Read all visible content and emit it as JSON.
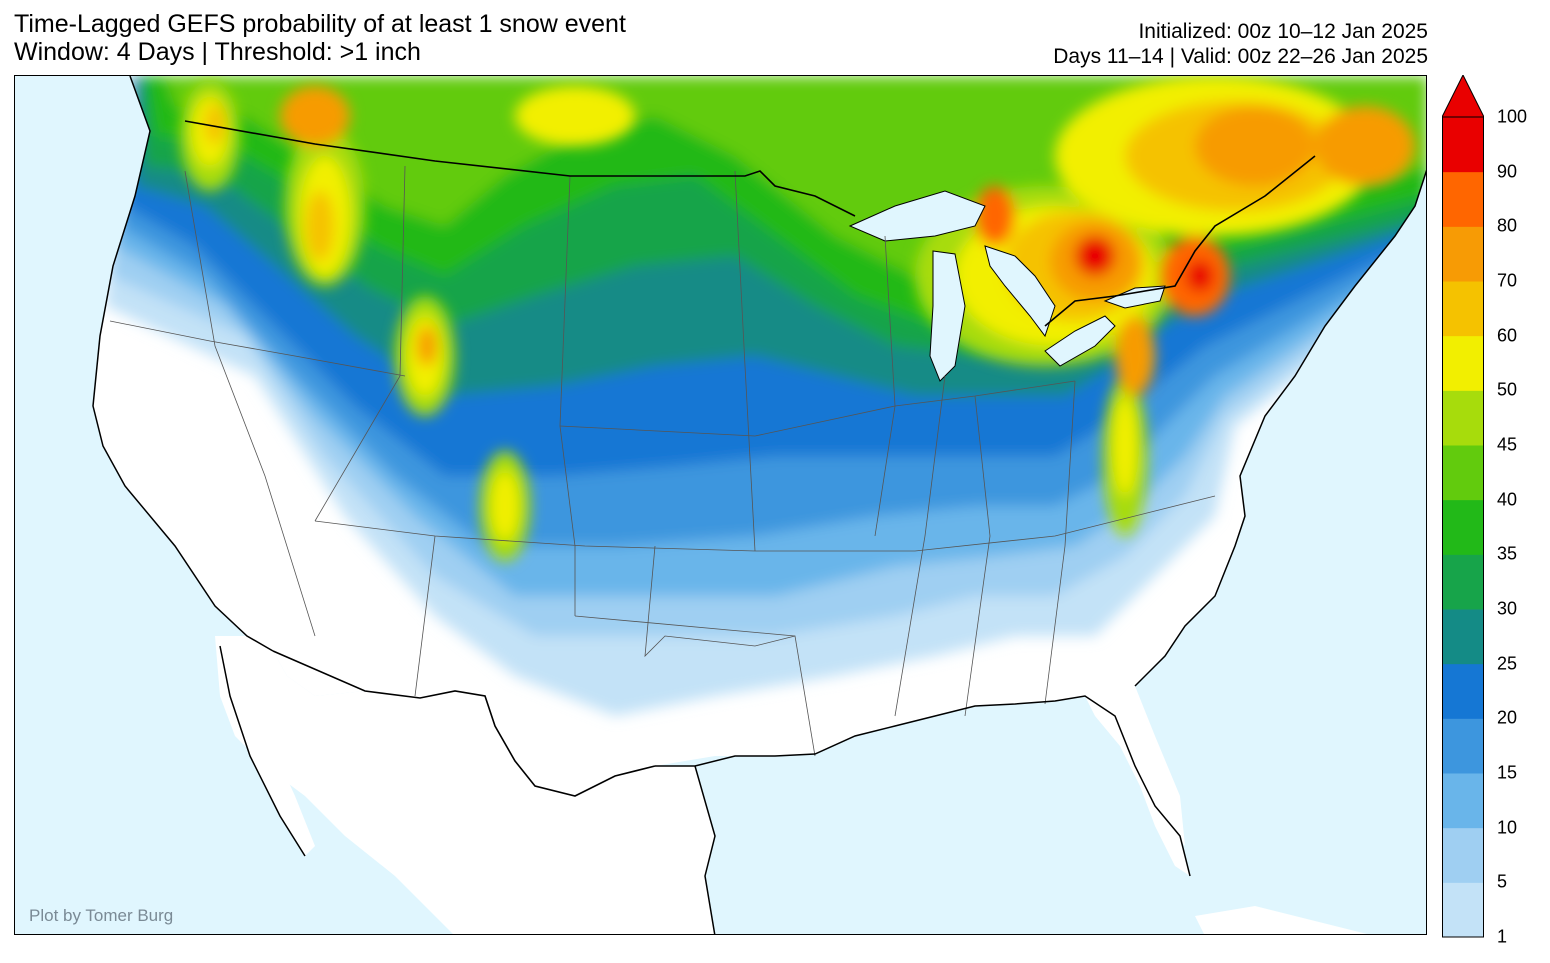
{
  "title": {
    "line1": "Time-Lagged GEFS probability of at least 1 snow event",
    "line2": "Window: 4 Days | Threshold: >1 inch"
  },
  "meta": {
    "line1": "Initialized: 00z 10–12 Jan 2025",
    "line2": "Days 11–14 | Valid: 00z 22–26 Jan 2025"
  },
  "credit": "Plot by Tomer Burg",
  "colorbar": {
    "levels": [
      "1",
      "5",
      "10",
      "15",
      "20",
      "25",
      "30",
      "35",
      "40",
      "45",
      "50",
      "60",
      "70",
      "80",
      "90",
      "100"
    ],
    "colors": [
      "#c3e2f7",
      "#9fcff2",
      "#69b5ea",
      "#3d96de",
      "#1577d4",
      "#148b86",
      "#17a44a",
      "#22b918",
      "#62cb0d",
      "#a7dc0c",
      "#f2ef00",
      "#f5c200",
      "#f79b05",
      "#ff6600",
      "#e90000"
    ],
    "extend": "max"
  },
  "map": {
    "ocean_color": "#e0f6fe",
    "land_color": "#ffffff"
  }
}
